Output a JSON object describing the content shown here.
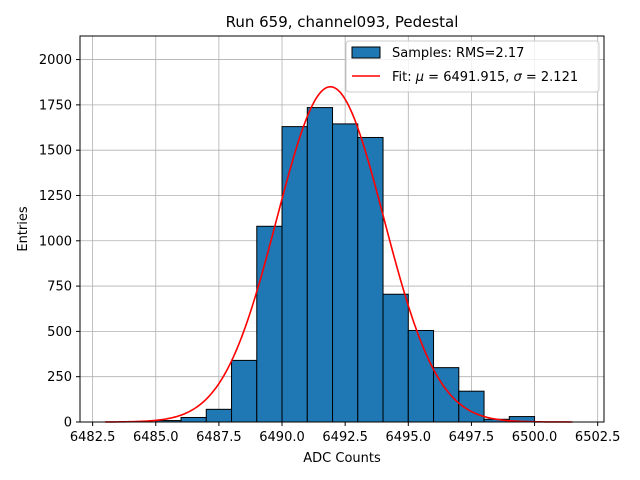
{
  "chart_data": {
    "type": "bar",
    "title": "Run 659, channel093, Pedestal",
    "xlabel": "ADC Counts",
    "ylabel": "Entries",
    "xlim": [
      6482.0,
      6502.75
    ],
    "ylim": [
      0,
      2130
    ],
    "xticks": [
      6482.5,
      6485.0,
      6487.5,
      6490.0,
      6492.5,
      6495.0,
      6497.5,
      6500.0,
      6502.5
    ],
    "xtick_labels": [
      "6482.5",
      "6485.0",
      "6487.5",
      "6490.0",
      "6492.5",
      "6495.0",
      "6497.5",
      "6500.0",
      "6502.5"
    ],
    "yticks": [
      0,
      250,
      500,
      750,
      1000,
      1250,
      1500,
      1750,
      2000
    ],
    "ytick_labels": [
      "0",
      "250",
      "500",
      "750",
      "1000",
      "1250",
      "1500",
      "1750",
      "2000"
    ],
    "grid": true,
    "legend_position": "top-right",
    "histogram": {
      "name": "Samples: RMS=2.17",
      "color": "#1f77b4",
      "bins": [
        {
          "x0": 6485,
          "x1": 6486,
          "value": 8
        },
        {
          "x0": 6486,
          "x1": 6487,
          "value": 25
        },
        {
          "x0": 6487,
          "x1": 6488,
          "value": 70
        },
        {
          "x0": 6488,
          "x1": 6489,
          "value": 340
        },
        {
          "x0": 6489,
          "x1": 6490,
          "value": 1080
        },
        {
          "x0": 6490,
          "x1": 6491,
          "value": 1630
        },
        {
          "x0": 6491,
          "x1": 6492,
          "value": 1735
        },
        {
          "x0": 6492,
          "x1": 6493,
          "value": 1645
        },
        {
          "x0": 6493,
          "x1": 6494,
          "value": 1570
        },
        {
          "x0": 6494,
          "x1": 6495,
          "value": 705
        },
        {
          "x0": 6495,
          "x1": 6496,
          "value": 505
        },
        {
          "x0": 6496,
          "x1": 6497,
          "value": 300
        },
        {
          "x0": 6497,
          "x1": 6498,
          "value": 170
        },
        {
          "x0": 6498,
          "x1": 6499,
          "value": 15
        },
        {
          "x0": 6499,
          "x1": 6500,
          "value": 30
        }
      ]
    },
    "fit": {
      "name_prefix": "Fit: ",
      "mu_symbol": "μ",
      "mu_text": " = 6491.915, ",
      "sigma_symbol": "σ",
      "sigma_text": " = 2.121",
      "color": "#ff0000",
      "mu": 6491.915,
      "sigma": 2.121,
      "amplitude": 1850,
      "x_range": [
        6483.0,
        6501.5
      ]
    }
  }
}
